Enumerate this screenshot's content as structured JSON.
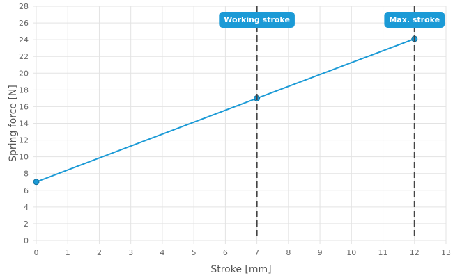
{
  "chart_data": {
    "type": "line",
    "xlabel": "Stroke [mm]",
    "ylabel": "Spring force [N]",
    "xlim": [
      0,
      13
    ],
    "ylim": [
      0,
      28
    ],
    "x_ticks": [
      "0",
      "1",
      "2",
      "3",
      "4",
      "5",
      "6",
      "7",
      "8",
      "9",
      "10",
      "11",
      "12",
      "13"
    ],
    "y_ticks": [
      "0",
      "2",
      "4",
      "6",
      "8",
      "10",
      "12",
      "14",
      "16",
      "18",
      "20",
      "22",
      "24",
      "26",
      "28"
    ],
    "grid": true,
    "series": [
      {
        "color": "#1b9ad6",
        "points": [
          {
            "x": 0,
            "y": 7
          },
          {
            "x": 7,
            "y": 17
          },
          {
            "x": 12,
            "y": 24.1
          }
        ]
      }
    ],
    "markers": [
      {
        "x": 7,
        "label": "Working stroke"
      },
      {
        "x": 12,
        "label": "Max. stroke"
      }
    ],
    "marker_color": "#1b9ad6"
  }
}
